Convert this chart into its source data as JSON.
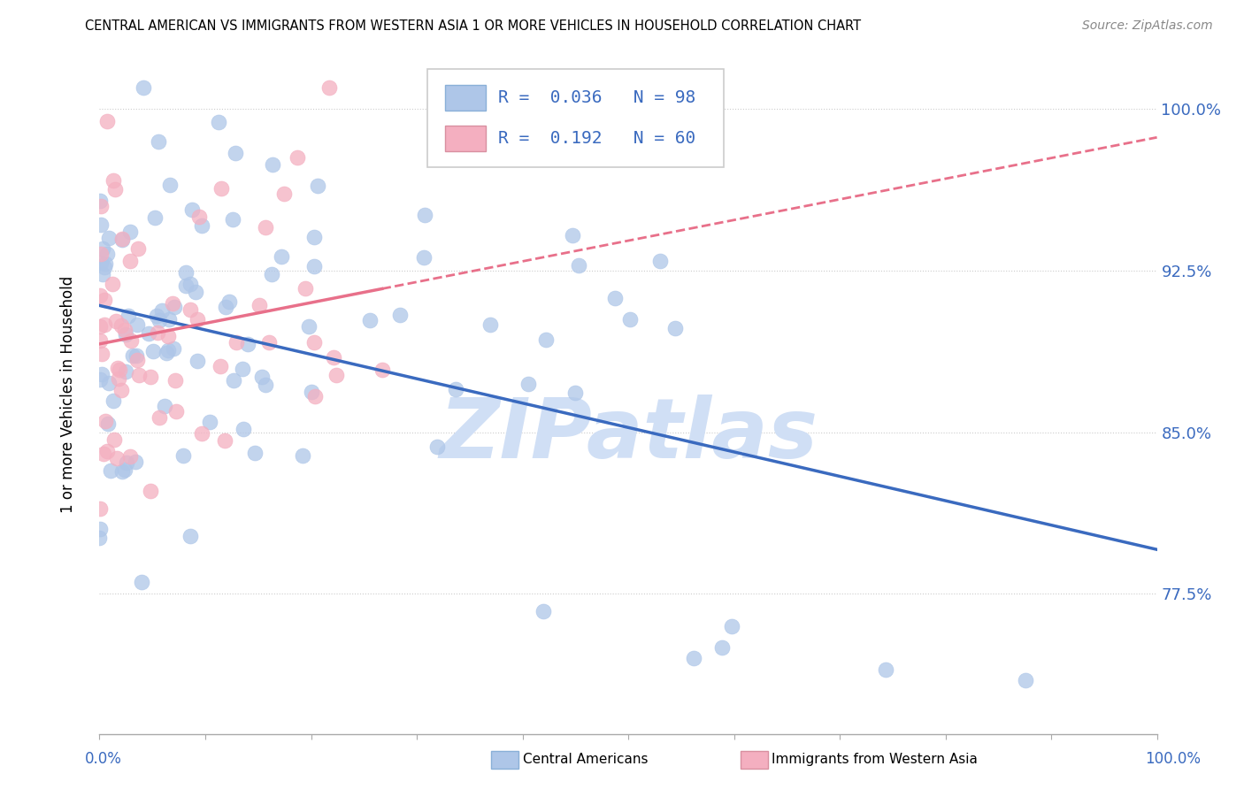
{
  "title": "CENTRAL AMERICAN VS IMMIGRANTS FROM WESTERN ASIA 1 OR MORE VEHICLES IN HOUSEHOLD CORRELATION CHART",
  "source": "Source: ZipAtlas.com",
  "ylabel": "1 or more Vehicles in Household",
  "ytick_values": [
    77.5,
    85.0,
    92.5,
    100.0
  ],
  "ymin": 71.0,
  "ymax": 102.5,
  "xmin": 0.0,
  "xmax": 100.0,
  "blue_R": 0.036,
  "blue_N": 98,
  "pink_R": 0.192,
  "pink_N": 60,
  "blue_color": "#aec6e8",
  "pink_color": "#f4afc0",
  "blue_line_color": "#3a6abf",
  "pink_line_color": "#e8708a",
  "watermark": "ZIPatlas",
  "watermark_color": "#d0dff5",
  "legend_label_blue": "Central Americans",
  "legend_label_pink": "Immigrants from Western Asia"
}
